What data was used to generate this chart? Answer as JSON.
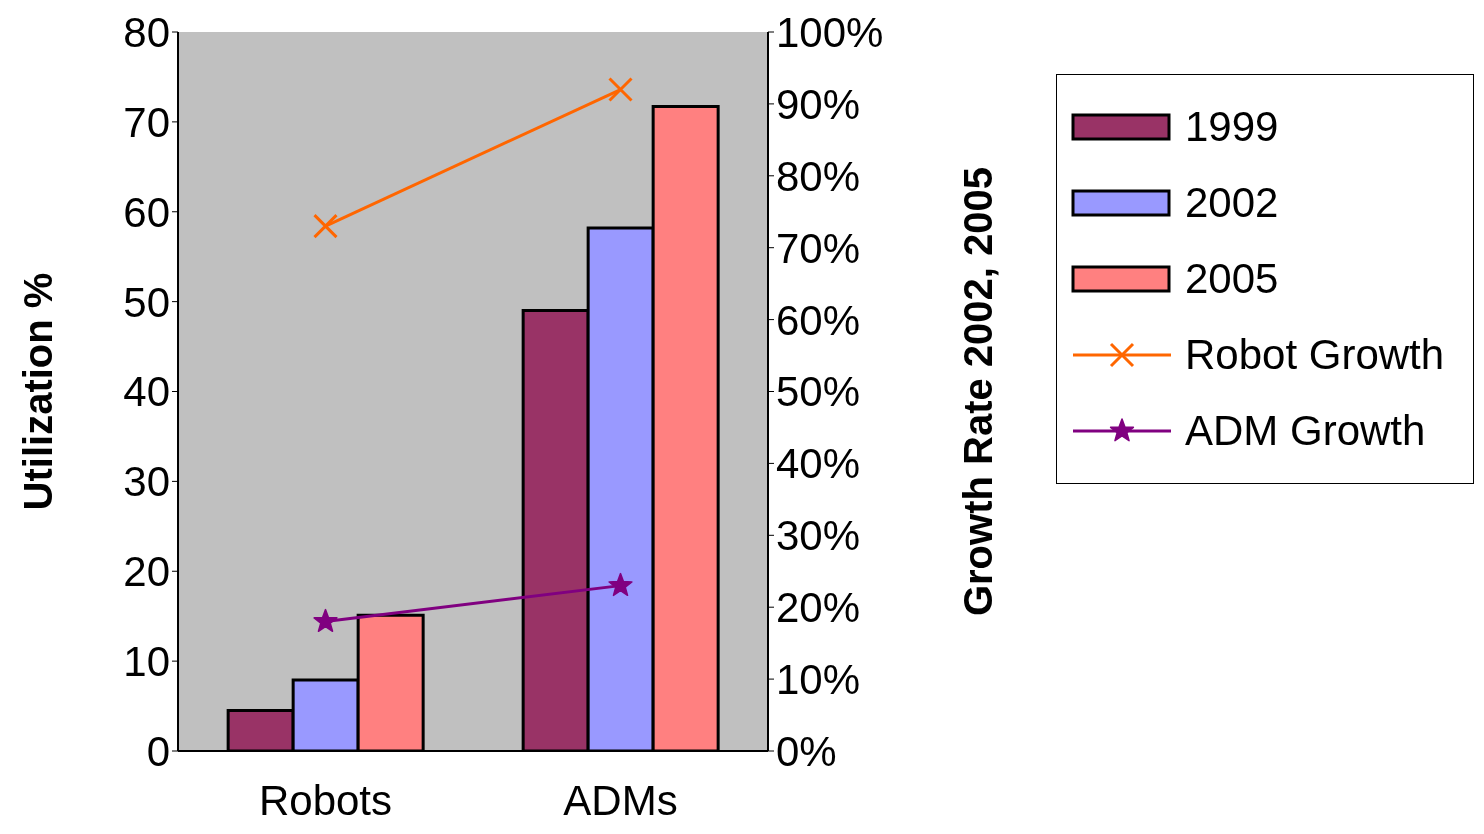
{
  "chart_data": {
    "type": "bar",
    "xlabel": null,
    "ylabel": "Utilization %",
    "y2label": "Growth Rate 2002, 2005",
    "categories": [
      "Robots",
      "ADMs"
    ],
    "series": [
      {
        "name": "1999",
        "color": "#993366",
        "values": [
          4.5,
          49
        ]
      },
      {
        "name": "2002",
        "color": "#9999ff",
        "values": [
          7.9,
          58.2
        ]
      },
      {
        "name": "2005",
        "color": "#ff8080",
        "values": [
          15.1,
          71.7
        ]
      },
      {
        "name": "Robot Growth",
        "type": "line",
        "axis": "y2",
        "color": "#ff6600",
        "marker": "cross",
        "values": [
          73,
          92
        ]
      },
      {
        "name": "ADM Growth",
        "type": "line",
        "axis": "y2",
        "color": "#800080",
        "marker": "star",
        "values": [
          18,
          23
        ]
      }
    ],
    "ylim": [
      0,
      80
    ],
    "yticks": [
      0,
      10,
      20,
      30,
      40,
      50,
      60,
      70,
      80
    ],
    "y2lim": [
      0,
      100
    ],
    "y2ticks": [
      {
        "value": 0,
        "label": "0%"
      },
      {
        "value": 10,
        "label": "10%"
      },
      {
        "value": 20,
        "label": "20%"
      },
      {
        "value": 30,
        "label": "30%"
      },
      {
        "value": 40,
        "label": "40%"
      },
      {
        "value": 50,
        "label": "50%"
      },
      {
        "value": 60,
        "label": "60%"
      },
      {
        "value": 70,
        "label": "70%"
      },
      {
        "value": 80,
        "label": "80%"
      },
      {
        "value": 90,
        "label": "90%"
      },
      {
        "value": 100,
        "label": "100%"
      }
    ],
    "grid": false,
    "legend": "right",
    "line_style": "solid"
  }
}
